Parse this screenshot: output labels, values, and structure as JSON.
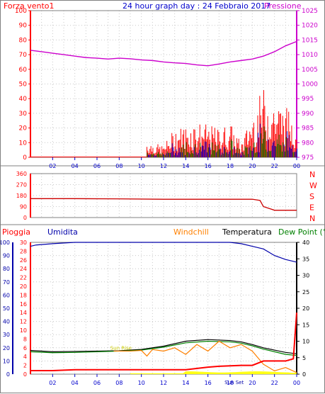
{
  "top_panel": {
    "left_label": "Forza vento1",
    "title": "24 hour graph day : 24 Febbraio 2017",
    "right_label": "Pressione",
    "left_ticks": [
      "100",
      "90",
      "80",
      "70",
      "60",
      "50",
      "40",
      "30",
      "20",
      "10",
      "0"
    ],
    "right_ticks": [
      "1025",
      "1020",
      "1015",
      "1010",
      "1005",
      "1000",
      "995",
      "990",
      "985",
      "980",
      "975"
    ],
    "x_ticks": [
      "02",
      "04",
      "06",
      "08",
      "10",
      "12",
      "14",
      "16",
      "18",
      "20",
      "22",
      "00"
    ]
  },
  "dir_panel": {
    "left_ticks": [
      "360",
      "270",
      "180",
      "90",
      "0"
    ],
    "right_labels": [
      "N",
      "W",
      "S",
      "E",
      "N"
    ]
  },
  "bottom_panel": {
    "labels": {
      "rain": "Pioggia",
      "humidity": "Umidita",
      "windchill": "Windchill",
      "temperature": "Temperatura",
      "dewpoint": "Dew Point (°C"
    },
    "hum_ticks": [
      "100",
      "90",
      "80",
      "70",
      "60",
      "50",
      "40",
      "30",
      "20",
      "10",
      "0"
    ],
    "rain_ticks": [
      "30",
      "28",
      "26",
      "24",
      "22",
      "20",
      "18",
      "16",
      "14",
      "12",
      "10",
      "8",
      "6",
      "4",
      "2",
      "0"
    ],
    "temp_ticks": [
      "40",
      "35",
      "30",
      "25",
      "20",
      "15",
      "10",
      "5",
      "0"
    ],
    "x_ticks": [
      "02",
      "04",
      "06",
      "08",
      "10",
      "12",
      "14",
      "16",
      "18",
      "20",
      "22",
      "00"
    ],
    "sun_rise": "Sun Rise",
    "sun_set": "Sun Set"
  },
  "colors": {
    "pressure": "#cc00cc",
    "gust": "#ff0000",
    "wind": "#0000cc",
    "wind_green": "#008000",
    "rain": "#ff0000",
    "humidity": "#0000aa",
    "windchill": "#ff8000",
    "temperature": "#000000",
    "dewpoint": "#008000",
    "sun": "#ffff00"
  },
  "chart_data": [
    {
      "type": "line",
      "title": "24 hour graph day : 24 Febbraio 2017",
      "series": [
        {
          "name": "Pressione",
          "axis": "right",
          "x": [
            0,
            1,
            2,
            3,
            4,
            5,
            6,
            7,
            8,
            9,
            10,
            11,
            12,
            13,
            14,
            15,
            16,
            17,
            18,
            19,
            20,
            21,
            22,
            23,
            24
          ],
          "values": [
            1011.5,
            1011,
            1010.5,
            1010,
            1009.5,
            1009,
            1008.8,
            1008.5,
            1008.8,
            1008.6,
            1008.2,
            1008,
            1007.5,
            1007.2,
            1007,
            1006.5,
            1006.2,
            1006.8,
            1007.5,
            1008,
            1008.5,
            1009.5,
            1011,
            1013,
            1014.5
          ]
        },
        {
          "name": "Forza vento1",
          "axis": "left",
          "x": [
            0,
            4,
            10.5,
            11,
            12,
            13,
            14,
            15,
            16,
            17,
            18,
            19,
            20,
            21,
            22,
            23,
            24
          ],
          "values": [
            0,
            1,
            12,
            10,
            8,
            20,
            22,
            25,
            22,
            20,
            24,
            10,
            30,
            48,
            40,
            35,
            30
          ]
        }
      ],
      "ylim_left": [
        0,
        100
      ],
      "ylim_right": [
        975,
        1025
      ]
    },
    {
      "type": "line",
      "series": [
        {
          "name": "direction",
          "x": [
            0,
            4,
            8,
            12,
            16,
            20,
            20.7,
            21,
            22,
            23,
            23.5,
            24
          ],
          "values": [
            155,
            155,
            153,
            150,
            150,
            150,
            140,
            90,
            60,
            60,
            60,
            60
          ]
        }
      ],
      "ylim": [
        0,
        360
      ]
    },
    {
      "type": "line",
      "series": [
        {
          "name": "Umidita",
          "axis": "humidity",
          "x": [
            0,
            0.5,
            2,
            4,
            6,
            8,
            10,
            12,
            14,
            16,
            18,
            19,
            20,
            21,
            22,
            23,
            23.5,
            24
          ],
          "values": [
            97,
            98,
            99,
            100,
            100,
            100,
            100,
            100,
            100,
            100,
            100,
            99,
            97,
            95,
            90,
            87,
            86,
            85
          ]
        },
        {
          "name": "Temperatura",
          "axis": "temp",
          "x": [
            0,
            2,
            4,
            6,
            8,
            10,
            12,
            14,
            16,
            18,
            19,
            20,
            21,
            22,
            23,
            24
          ],
          "values": [
            7.2,
            6.8,
            6.9,
            7,
            7.1,
            7.5,
            8.5,
            10,
            10.5,
            10.2,
            9.8,
            9,
            8,
            7.3,
            6.6,
            6.2
          ]
        },
        {
          "name": "Dew Point (°C",
          "axis": "temp",
          "x": [
            0,
            2,
            4,
            6,
            8,
            10,
            12,
            14,
            16,
            18,
            19,
            20,
            21,
            22,
            23,
            24
          ],
          "values": [
            6.8,
            6.5,
            6.6,
            6.8,
            7,
            7.3,
            8.2,
            9.5,
            10,
            9.8,
            9.4,
            8.6,
            7.6,
            6.8,
            6,
            5.7
          ]
        },
        {
          "name": "Windchill",
          "axis": "temp",
          "x": [
            7.5,
            8,
            9,
            10,
            10.5,
            11,
            12,
            13,
            14,
            15,
            16,
            17,
            18,
            19,
            20,
            21,
            22,
            23,
            24
          ],
          "values": [
            7,
            7,
            7,
            7.2,
            5.5,
            7.5,
            7,
            8,
            6,
            9,
            7,
            10,
            8,
            9,
            7,
            3,
            1,
            2,
            0.5
          ]
        },
        {
          "name": "Pioggia",
          "axis": "rain",
          "x": [
            0,
            2,
            4,
            6,
            8,
            10,
            12,
            14,
            16,
            17,
            18,
            19,
            20,
            21,
            22,
            23,
            23.7,
            24
          ],
          "values": [
            0.8,
            0.8,
            1,
            1,
            1,
            1,
            1,
            1,
            1.6,
            1.8,
            1.9,
            2,
            2,
            3,
            3,
            3,
            3.5,
            14
          ]
        }
      ],
      "ylim_humidity": [
        0,
        100
      ],
      "ylim_rain": [
        0,
        30
      ],
      "ylim_temp": [
        0,
        40
      ]
    }
  ]
}
